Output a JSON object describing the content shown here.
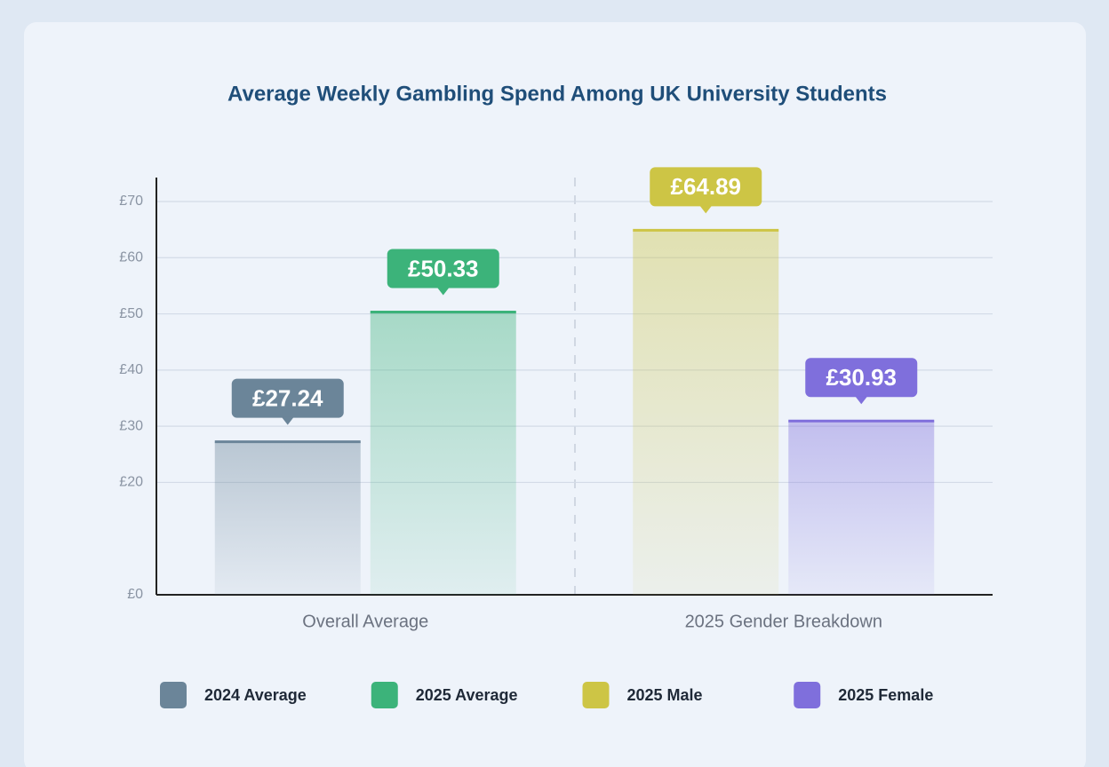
{
  "chart_data": {
    "type": "bar",
    "title": "Average Weekly Gambling Spend Among UK University Students",
    "categories": [
      "Overall Average",
      "2025 Gender Breakdown"
    ],
    "series": [
      {
        "name": "2024 Average",
        "color": "#6b8599",
        "values": [
          27.24,
          null
        ],
        "value_labels": [
          "£27.24",
          null
        ]
      },
      {
        "name": "2025 Average",
        "color": "#3cb37a",
        "values": [
          50.33,
          null
        ],
        "value_labels": [
          "£50.33",
          null
        ]
      },
      {
        "name": "2025 Male",
        "color": "#cdc545",
        "values": [
          null,
          64.89
        ],
        "value_labels": [
          null,
          "£64.89"
        ]
      },
      {
        "name": "2025 Female",
        "color": "#7f6fdc",
        "values": [
          null,
          30.93
        ],
        "value_labels": [
          null,
          "£30.93"
        ]
      }
    ],
    "ylim": [
      0,
      70
    ],
    "yticks": [
      {
        "value": 0,
        "label": "£0"
      },
      {
        "value": 20,
        "label": "£20"
      },
      {
        "value": 30,
        "label": "£30"
      },
      {
        "value": 40,
        "label": "£40"
      },
      {
        "value": 50,
        "label": "£50"
      },
      {
        "value": 60,
        "label": "£60"
      },
      {
        "value": 70,
        "label": "£70"
      }
    ],
    "grid": true,
    "legend": "bottom"
  }
}
